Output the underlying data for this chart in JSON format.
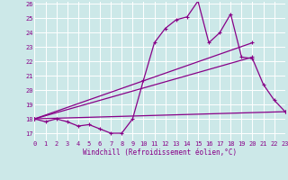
{
  "background_color": "#cce8e8",
  "grid_color": "#ffffff",
  "line_color": "#880088",
  "xlabel": "Windchill (Refroidissement éolien,°C)",
  "ylim_min": 17,
  "ylim_max": 26,
  "xlim_min": 0,
  "xlim_max": 23,
  "yticks": [
    17,
    18,
    19,
    20,
    21,
    22,
    23,
    24,
    25,
    26
  ],
  "xticks": [
    0,
    1,
    2,
    3,
    4,
    5,
    6,
    7,
    8,
    9,
    10,
    11,
    12,
    13,
    14,
    15,
    16,
    17,
    18,
    19,
    20,
    21,
    22,
    23
  ],
  "series1_x": [
    0,
    1,
    2,
    3,
    4,
    5,
    6,
    7,
    8,
    9,
    10,
    11,
    12,
    13,
    14,
    15,
    16,
    17,
    18,
    19,
    20,
    21,
    22,
    23
  ],
  "series1_y": [
    18.0,
    17.8,
    18.0,
    17.8,
    17.5,
    17.6,
    17.3,
    17.0,
    17.0,
    18.0,
    20.7,
    23.3,
    24.3,
    24.9,
    25.1,
    26.2,
    23.3,
    24.0,
    25.3,
    22.3,
    22.2,
    20.4,
    19.3,
    18.5
  ],
  "series2_x": [
    0,
    23
  ],
  "series2_y": [
    18.0,
    18.5
  ],
  "series3_x": [
    0,
    20
  ],
  "series3_y": [
    18.0,
    22.3
  ],
  "series4_x": [
    0,
    20
  ],
  "series4_y": [
    18.0,
    23.3
  ]
}
